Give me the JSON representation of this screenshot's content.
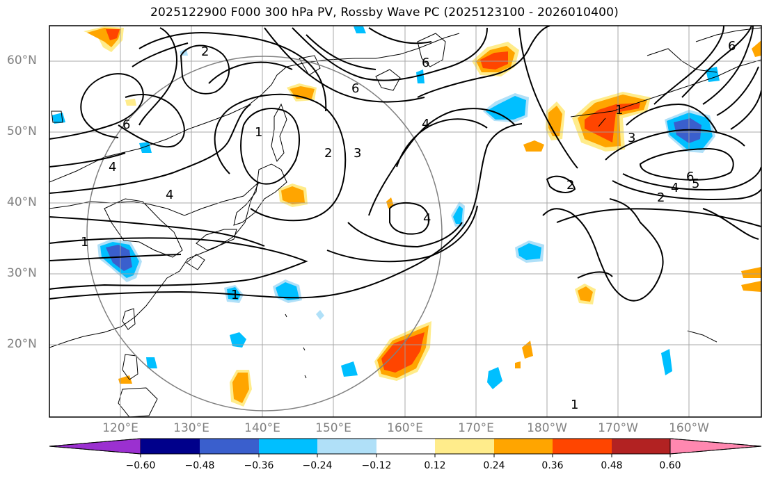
{
  "title": "2025122900 F000 300 hPa PV, Rossby Wave PC (2025123100 - 2026010400)",
  "lat_labels": [
    "60°N",
    "50°N",
    "40°N",
    "30°N",
    "20°N"
  ],
  "lon_labels": [
    "120°E",
    "130°E",
    "140°E",
    "150°E",
    "160°E",
    "170°E",
    "180°W",
    "170°W",
    "160°W"
  ],
  "contour_labels": [
    "2",
    "6",
    "6",
    "4",
    "4",
    "1",
    "1",
    "2",
    "3",
    "1",
    "6",
    "4",
    "4",
    "1",
    "2",
    "3",
    "6",
    "5",
    "4",
    "2",
    "1",
    "6"
  ],
  "colorbar": {
    "ticks": [
      "−0.60",
      "−0.48",
      "−0.36",
      "−0.24",
      "−0.12",
      "0.12",
      "0.24",
      "0.36",
      "0.48",
      "0.60"
    ],
    "colors": [
      "#9b30d0",
      "#00008b",
      "#3a5fcd",
      "#00bfff",
      "#b0e0f8",
      "#ffffff",
      "#ffec8b",
      "#ffa500",
      "#ff4500",
      "#b22222",
      "#ff88b0"
    ]
  },
  "colors": {
    "contour": "#000000",
    "coast": "#000000",
    "grid": "#a0a0a0",
    "circle": "#808080"
  }
}
